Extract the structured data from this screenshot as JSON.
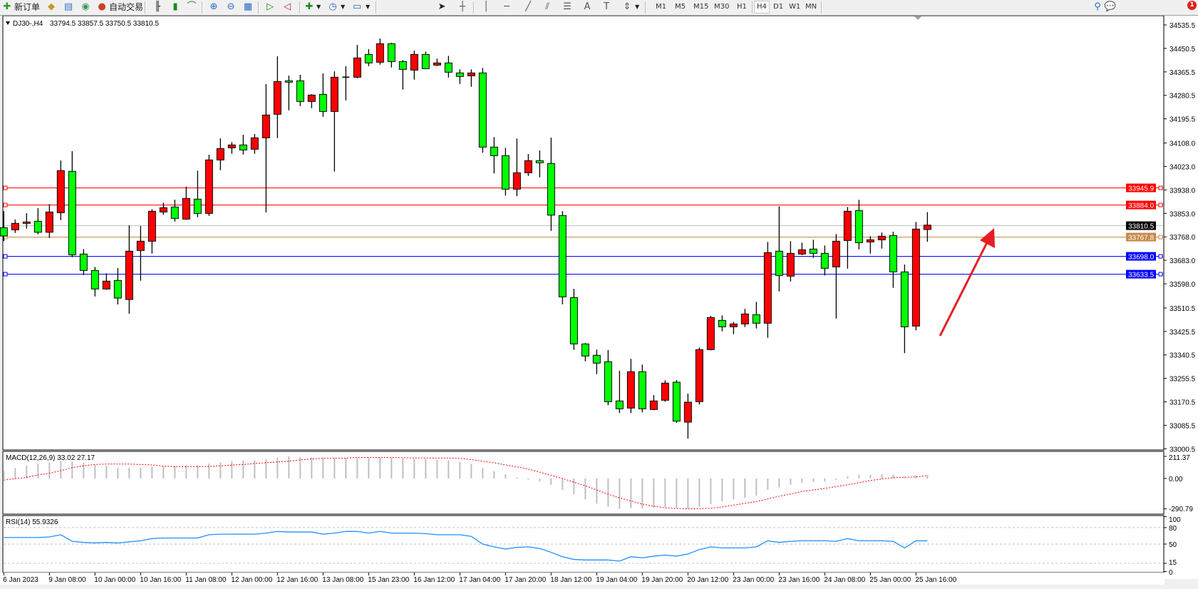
{
  "toolbar": {
    "new_order": "新订单",
    "auto_trading": "自动交易",
    "timeframes": [
      "M1",
      "M5",
      "M15",
      "M30",
      "H1",
      "H4",
      "D1",
      "W1",
      "MN"
    ],
    "active_timeframe": "H4",
    "notification_count": "1",
    "drawing_tools": [
      "cursor-icon",
      "crosshair-icon",
      "vertical-line-icon",
      "horizontal-line-icon",
      "trendline-icon",
      "channel-icon",
      "fibonacci-icon",
      "text-icon",
      "label-icon",
      "arrows-icon"
    ]
  },
  "chart": {
    "symbol": "DJ30-,H4",
    "ohlc": "33794.5 33857.5 33750.5 33810.5"
  },
  "chart_data": [
    {
      "type": "candlestick",
      "bull_color": "#ff0000",
      "bear_color": "#00ff00",
      "ylim": [
        33000.5,
        34535.5
      ],
      "price_ticks": [
        "34535.5",
        "34450.5",
        "34365.5",
        "34280.5",
        "34195.5",
        "34108.0",
        "34023.0",
        "33938.0",
        "33853.0",
        "33768.0",
        "33683.0",
        "33598.0",
        "33510.5",
        "33425.5",
        "33340.5",
        "33255.5",
        "33170.5",
        "33085.5",
        "33000.5"
      ],
      "time_labels": [
        "6 Jan 2023",
        "9 Jan 08:00",
        "10 Jan 00:00",
        "10 Jan 16:00",
        "11 Jan 08:00",
        "12 Jan 00:00",
        "12 Jan 16:00",
        "13 Jan 08:00",
        "15 Jan 23:00",
        "16 Jan 12:00",
        "17 Jan 04:00",
        "17 Jan 20:00",
        "18 Jan 12:00",
        "19 Jan 04:00",
        "19 Jan 20:00",
        "20 Jan 12:00",
        "23 Jan 00:00",
        "23 Jan 16:00",
        "24 Jan 08:00",
        "25 Jan 00:00",
        "25 Jan 16:00"
      ],
      "hlines": [
        {
          "price": "33945.9",
          "color": "#ff0000"
        },
        {
          "price": "33884.0",
          "color": "#ff0000"
        },
        {
          "price": "33810.5",
          "color": "#c0c0c0",
          "label_bg": "#000000"
        },
        {
          "price": "33767.8",
          "color": "#c8884a"
        },
        {
          "price": "33698.0",
          "color": "#0000ff"
        },
        {
          "price": "33633.5",
          "color": "#0000ff"
        }
      ],
      "annotation_arrow_color": "#e81c24",
      "candles_ohlc": [
        [
          33801.3,
          33861.5,
          33753.0,
          33771.1
        ],
        [
          33793.5,
          33830.5,
          33782.2,
          33816.8
        ],
        [
          33816.8,
          33853.7,
          33797.7,
          33821.9
        ],
        [
          33824.5,
          33871.8,
          33777.0,
          33784.7
        ],
        [
          33784.7,
          33886.5,
          33764.1,
          33858.1
        ],
        [
          33855.5,
          34044.8,
          33828.6,
          34007.9
        ],
        [
          34005.3,
          34078.4,
          33694.4,
          33703.1
        ],
        [
          33705.7,
          33723.8,
          33629.8,
          33646.3
        ],
        [
          33646.3,
          33659.2,
          33552.3,
          33579.2
        ],
        [
          33579.2,
          33636.0,
          33576.6,
          33607.6
        ],
        [
          33610.2,
          33654.8,
          33523.1,
          33546.4
        ],
        [
          33541.2,
          33809.8,
          33489.6,
          33716.1
        ],
        [
          33718.6,
          33807.2,
          33609.1,
          33752.2
        ],
        [
          33752.2,
          33868.4,
          33707.3,
          33860.7
        ],
        [
          33858.1,
          33891.7,
          33847.8,
          33873.6
        ],
        [
          33876.2,
          33902.8,
          33823.5,
          33834.8
        ],
        [
          33832.3,
          33950.0,
          33830.0,
          33907.2
        ],
        [
          33904.6,
          34007.9,
          33839.0,
          33852.9
        ],
        [
          33852.9,
          34065.5,
          33844.1,
          34046.6
        ],
        [
          34046.6,
          34124.9,
          34009.4,
          34087.9
        ],
        [
          34090.5,
          34111.2,
          34068.8,
          34100.9
        ],
        [
          34100.9,
          34137.8,
          34066.2,
          34082.8
        ],
        [
          34085.4,
          34140.4,
          34068.8,
          34126.7
        ],
        [
          34126.7,
          34321.2,
          33856.3,
          34209.3
        ],
        [
          34211.9,
          34421.9,
          34125.7,
          34330.7
        ],
        [
          34333.3,
          34352.1,
          34226.4,
          34328.1
        ],
        [
          34333.3,
          34354.7,
          34241.9,
          34258.4
        ],
        [
          34258.4,
          34285.0,
          34234.1,
          34281.6
        ],
        [
          34284.2,
          34359.9,
          34203.1,
          34222.2
        ],
        [
          34222.2,
          34367.6,
          34004.3,
          34346.2
        ],
        [
          34346.5,
          34385.7,
          34262.5,
          34346.5
        ],
        [
          34346.2,
          34463.2,
          34342.6,
          34415.9
        ],
        [
          34428.8,
          34447.7,
          34386.5,
          34397.9
        ],
        [
          34400.4,
          34486.4,
          34391.7,
          34467.6
        ],
        [
          34467.6,
          34470.9,
          34381.3,
          34403.0
        ],
        [
          34403.0,
          34408.2,
          34301.3,
          34374.6
        ],
        [
          34372.0,
          34442.5,
          34337.4,
          34428.8
        ],
        [
          34428.8,
          34439.2,
          34377.2,
          34377.2
        ],
        [
          34390.1,
          34413.4,
          34386.5,
          34397.9
        ],
        [
          34397.9,
          34423.7,
          34345.2,
          34364.3
        ],
        [
          34361.7,
          34374.6,
          34321.9,
          34348.8
        ],
        [
          34351.4,
          34374.6,
          34311.6,
          34361.7
        ],
        [
          34361.7,
          34379.8,
          34072.5,
          34093.1
        ],
        [
          34093.1,
          34129.3,
          33997.6,
          34062.1
        ],
        [
          34062.1,
          34090.5,
          33917.5,
          33940.7
        ],
        [
          33940.7,
          34124.1,
          33914.9,
          34000.1
        ],
        [
          34000.1,
          34068.1,
          33988.8,
          34044.0
        ],
        [
          34044.0,
          34081.0,
          33983.6,
          34036.3
        ],
        [
          34033.7,
          34127.5,
          33789.9,
          33846.7
        ],
        [
          33845.2,
          33861.5,
          33523.9,
          33550.8
        ],
        [
          33548.2,
          33579.9,
          33358.6,
          33380.3
        ],
        [
          33380.3,
          33382.9,
          33317.3,
          33336.4
        ],
        [
          33339.0,
          33359.7,
          33270.8,
          33310.6
        ],
        [
          33315.7,
          33357.8,
          33158.2,
          33171.1
        ],
        [
          33173.7,
          33283.0,
          33129.8,
          33145.3
        ],
        [
          33147.9,
          33326.1,
          33129.8,
          33279.6
        ],
        [
          33279.6,
          33305.4,
          33132.4,
          33145.3
        ],
        [
          33142.7,
          33195.1,
          33140.1,
          33173.7
        ],
        [
          33176.3,
          33248.6,
          33171.1,
          33238.3
        ],
        [
          33241.6,
          33249.4,
          33094.4,
          33100.6
        ],
        [
          33097.0,
          33200.3,
          33037.6,
          33169.3
        ],
        [
          33171.1,
          33367.4,
          33160.8,
          33359.7
        ],
        [
          33359.7,
          33481.8,
          33357.0,
          33475.9
        ],
        [
          33465.5,
          33483.6,
          33425.8,
          33442.3
        ],
        [
          33442.3,
          33460.4,
          33415.4,
          33452.6
        ],
        [
          33452.6,
          33506.9,
          33441.3,
          33488.8
        ],
        [
          33486.2,
          33532.7,
          33436.1,
          33455.2
        ],
        [
          33455.2,
          33749.6,
          33402.5,
          33710.9
        ],
        [
          33716.1,
          33878.8,
          33570.4,
          33628.2
        ],
        [
          33625.7,
          33752.2,
          33606.5,
          33708.3
        ],
        [
          33705.7,
          33747.0,
          33702.1,
          33721.2
        ],
        [
          33723.8,
          33757.4,
          33691.8,
          33708.3
        ],
        [
          33708.3,
          33736.7,
          33628.2,
          33654.1
        ],
        [
          33659.2,
          33778.0,
          33472.2,
          33752.2
        ],
        [
          33754.8,
          33876.2,
          33653.0,
          33860.7
        ],
        [
          33863.3,
          33902.0,
          33722.8,
          33747.0
        ],
        [
          33749.6,
          33770.3,
          33707.3,
          33757.4
        ],
        [
          33757.4,
          33784.0,
          33725.4,
          33770.3
        ],
        [
          33772.9,
          33786.6,
          33583.3,
          33641.1
        ],
        [
          33641.1,
          33667.8,
          33346.8,
          33442.3
        ],
        [
          33444.9,
          33821.9,
          33429.4,
          33796.1
        ],
        [
          33794.5,
          33857.5,
          33750.5,
          33810.5
        ]
      ]
    },
    {
      "type": "bar",
      "title": "MACD(12,26,9) 33.02 27.17",
      "ylim": [
        -290.79,
        211.37
      ],
      "tick_labels": [
        "211.37",
        "0.00",
        "-290.79"
      ],
      "histogram_color": "#c0c0c0",
      "signal_color": "#ff0000",
      "macd": [
        71,
        100,
        125,
        140,
        153,
        165,
        163,
        151,
        130,
        121,
        102,
        102,
        102,
        115,
        118,
        123,
        128,
        130,
        141,
        153,
        166,
        173,
        173,
        186,
        199,
        211,
        206,
        201,
        196,
        196,
        196,
        196,
        201,
        201,
        199,
        193,
        188,
        186,
        180,
        172,
        160,
        140,
        100,
        70,
        40,
        10,
        -10,
        -30,
        -60,
        -110,
        -150,
        -200,
        -240,
        -270,
        -290,
        -285,
        -285,
        -280,
        -275,
        -280,
        -290,
        -270,
        -245,
        -220,
        -200,
        -185,
        -165,
        -110,
        -85,
        -60,
        -45,
        -35,
        -30,
        -15,
        20,
        35,
        35,
        40,
        35,
        15,
        30,
        33.02
      ],
      "signal": [
        -15,
        -2,
        10,
        33,
        50,
        75,
        103,
        121,
        134,
        138,
        138,
        138,
        134,
        130,
        118,
        113,
        113,
        113,
        115,
        121,
        128,
        134,
        143,
        151,
        158,
        165,
        178,
        186,
        193,
        193,
        195,
        201,
        201,
        201,
        201,
        199,
        196,
        196,
        195,
        195,
        193,
        180,
        165,
        150,
        130,
        110,
        90,
        60,
        30,
        0,
        -35,
        -70,
        -110,
        -150,
        -185,
        -215,
        -245,
        -265,
        -280,
        -287,
        -290,
        -289,
        -285,
        -272,
        -255,
        -238,
        -220,
        -195,
        -170,
        -148,
        -125,
        -110,
        -95,
        -78,
        -60,
        -40,
        -20,
        -5,
        8,
        12,
        15,
        27.17
      ]
    },
    {
      "type": "line",
      "title": "RSI(14) 55.9326",
      "ylim": [
        0,
        100
      ],
      "tick_labels": [
        "100",
        "80",
        "50",
        "15",
        "0"
      ],
      "levels": [
        80,
        50,
        15
      ],
      "line_color": "#1e90ff",
      "values": [
        62,
        62,
        62,
        62,
        63,
        67,
        55,
        53,
        52,
        53,
        52,
        54,
        56,
        60,
        61,
        61,
        61,
        61,
        67,
        68,
        68,
        68,
        68,
        70,
        73,
        72,
        72,
        72,
        68,
        70,
        73,
        73,
        70,
        73,
        70,
        70,
        70,
        69,
        67,
        67,
        67,
        64,
        50,
        45,
        41,
        44,
        45,
        42,
        35,
        27,
        22,
        21,
        21,
        21,
        19,
        27,
        25,
        28,
        30,
        28,
        32,
        40,
        45,
        43,
        43,
        43,
        45,
        56,
        53,
        55,
        56,
        56,
        56,
        55,
        60,
        56,
        56,
        56,
        55,
        43,
        55.9,
        55.9326
      ]
    }
  ]
}
